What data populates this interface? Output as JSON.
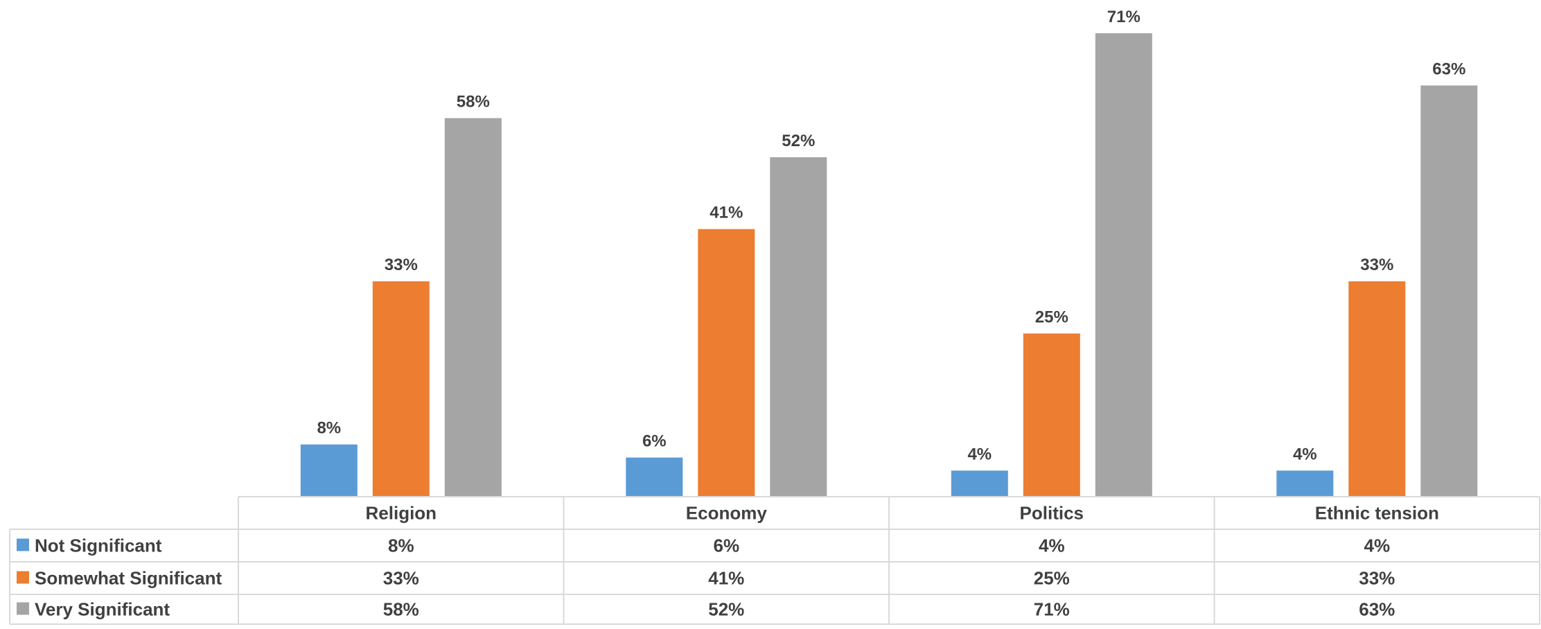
{
  "chart_data": {
    "type": "bar",
    "categories": [
      "Religion",
      "Economy",
      "Politics",
      "Ethnic tension"
    ],
    "series": [
      {
        "name": "Not Significant",
        "color": "#5b9bd5",
        "values": [
          8,
          6,
          4,
          4
        ],
        "labels": [
          "8%",
          "6%",
          "4%",
          "4%"
        ]
      },
      {
        "name": "Somewhat Significant",
        "color": "#ed7d31",
        "values": [
          33,
          41,
          25,
          33
        ],
        "labels": [
          "33%",
          "41%",
          "25%",
          "33%"
        ]
      },
      {
        "name": "Very Significant",
        "color": "#a5a5a5",
        "values": [
          58,
          52,
          71,
          63
        ],
        "labels": [
          "58%",
          "52%",
          "71%",
          "63%"
        ]
      }
    ],
    "ylim": [
      0,
      71
    ],
    "value_unit": "%",
    "legend": "data-table-below",
    "grid": false,
    "title": "",
    "xlabel": "",
    "ylabel": ""
  }
}
